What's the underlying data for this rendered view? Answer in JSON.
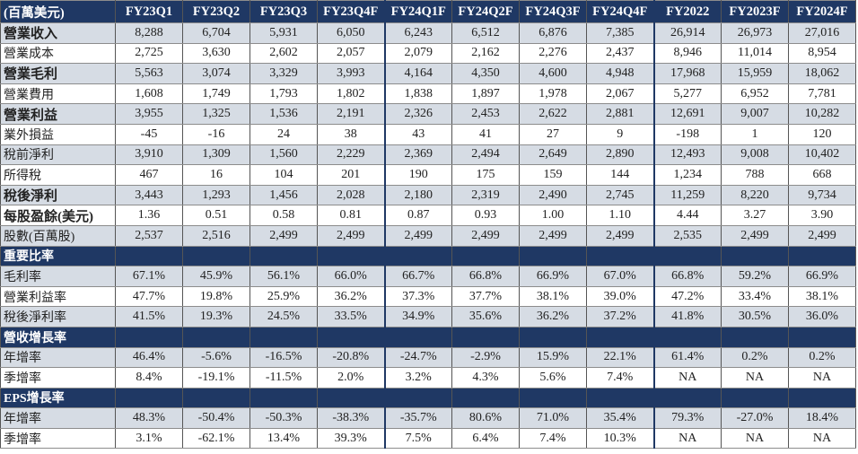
{
  "table": {
    "header": [
      "(百萬美元)",
      "FY23Q1",
      "FY23Q2",
      "FY23Q3",
      "FY23Q4F",
      "FY24Q1F",
      "FY24Q2F",
      "FY24Q3F",
      "FY24Q4F",
      "FY2022",
      "FY2023F",
      "FY2024F"
    ],
    "rows": [
      [
        "營業收入",
        "8,288",
        "6,704",
        "5,931",
        "6,050",
        "6,243",
        "6,512",
        "6,876",
        "7,385",
        "26,914",
        "26,973",
        "27,016"
      ],
      [
        "營業成本",
        "2,725",
        "3,630",
        "2,602",
        "2,057",
        "2,079",
        "2,162",
        "2,276",
        "2,437",
        "8,946",
        "11,014",
        "8,954"
      ],
      [
        "營業毛利",
        "5,563",
        "3,074",
        "3,329",
        "3,993",
        "4,164",
        "4,350",
        "4,600",
        "4,948",
        "17,968",
        "15,959",
        "18,062"
      ],
      [
        "營業費用",
        "1,608",
        "1,749",
        "1,793",
        "1,802",
        "1,838",
        "1,897",
        "1,978",
        "2,067",
        "5,277",
        "6,952",
        "7,781"
      ],
      [
        "營業利益",
        "3,955",
        "1,325",
        "1,536",
        "2,191",
        "2,326",
        "2,453",
        "2,622",
        "2,881",
        "12,691",
        "9,007",
        "10,282"
      ],
      [
        "業外損益",
        "-45",
        "-16",
        "24",
        "38",
        "43",
        "41",
        "27",
        "9",
        "-198",
        "1",
        "120"
      ],
      [
        "稅前淨利",
        "3,910",
        "1,309",
        "1,560",
        "2,229",
        "2,369",
        "2,494",
        "2,649",
        "2,890",
        "12,493",
        "9,008",
        "10,402"
      ],
      [
        "所得稅",
        "467",
        "16",
        "104",
        "201",
        "190",
        "175",
        "159",
        "144",
        "1,234",
        "788",
        "668"
      ],
      [
        "稅後淨利",
        "3,443",
        "1,293",
        "1,456",
        "2,028",
        "2,180",
        "2,319",
        "2,490",
        "2,745",
        "11,259",
        "8,220",
        "9,734"
      ],
      [
        "每股盈餘(美元)",
        "1.36",
        "0.51",
        "0.58",
        "0.81",
        "0.87",
        "0.93",
        "1.00",
        "1.10",
        "4.44",
        "3.27",
        "3.90"
      ],
      [
        "股數(百萬股)",
        "2,537",
        "2,516",
        "2,499",
        "2,499",
        "2,499",
        "2,499",
        "2,499",
        "2,499",
        "2,535",
        "2,499",
        "2,499"
      ],
      [
        "重要比率"
      ],
      [
        "毛利率",
        "67.1%",
        "45.9%",
        "56.1%",
        "66.0%",
        "66.7%",
        "66.8%",
        "66.9%",
        "67.0%",
        "66.8%",
        "59.2%",
        "66.9%"
      ],
      [
        "營業利益率",
        "47.7%",
        "19.8%",
        "25.9%",
        "36.2%",
        "37.3%",
        "37.7%",
        "38.1%",
        "39.0%",
        "47.2%",
        "33.4%",
        "38.1%"
      ],
      [
        "稅後淨利率",
        "41.5%",
        "19.3%",
        "24.5%",
        "33.5%",
        "34.9%",
        "35.6%",
        "36.2%",
        "37.2%",
        "41.8%",
        "30.5%",
        "36.0%"
      ],
      [
        "營收增長率"
      ],
      [
        "年增率",
        "46.4%",
        "-5.6%",
        "-16.5%",
        "-20.8%",
        "-24.7%",
        "-2.9%",
        "15.9%",
        "22.1%",
        "61.4%",
        "0.2%",
        "0.2%"
      ],
      [
        "季增率",
        "8.4%",
        "-19.1%",
        "-11.5%",
        "2.0%",
        "3.2%",
        "4.3%",
        "5.6%",
        "7.4%",
        "NA",
        "NA",
        "NA"
      ],
      [
        "EPS增長率"
      ],
      [
        "年增率",
        "48.3%",
        "-50.4%",
        "-50.3%",
        "-38.3%",
        "-35.7%",
        "80.6%",
        "71.0%",
        "35.4%",
        "79.3%",
        "-27.0%",
        "18.4%"
      ],
      [
        "季增率",
        "3.1%",
        "-62.1%",
        "13.4%",
        "39.3%",
        "7.5%",
        "6.4%",
        "7.4%",
        "10.3%",
        "NA",
        "NA",
        "NA"
      ]
    ]
  }
}
